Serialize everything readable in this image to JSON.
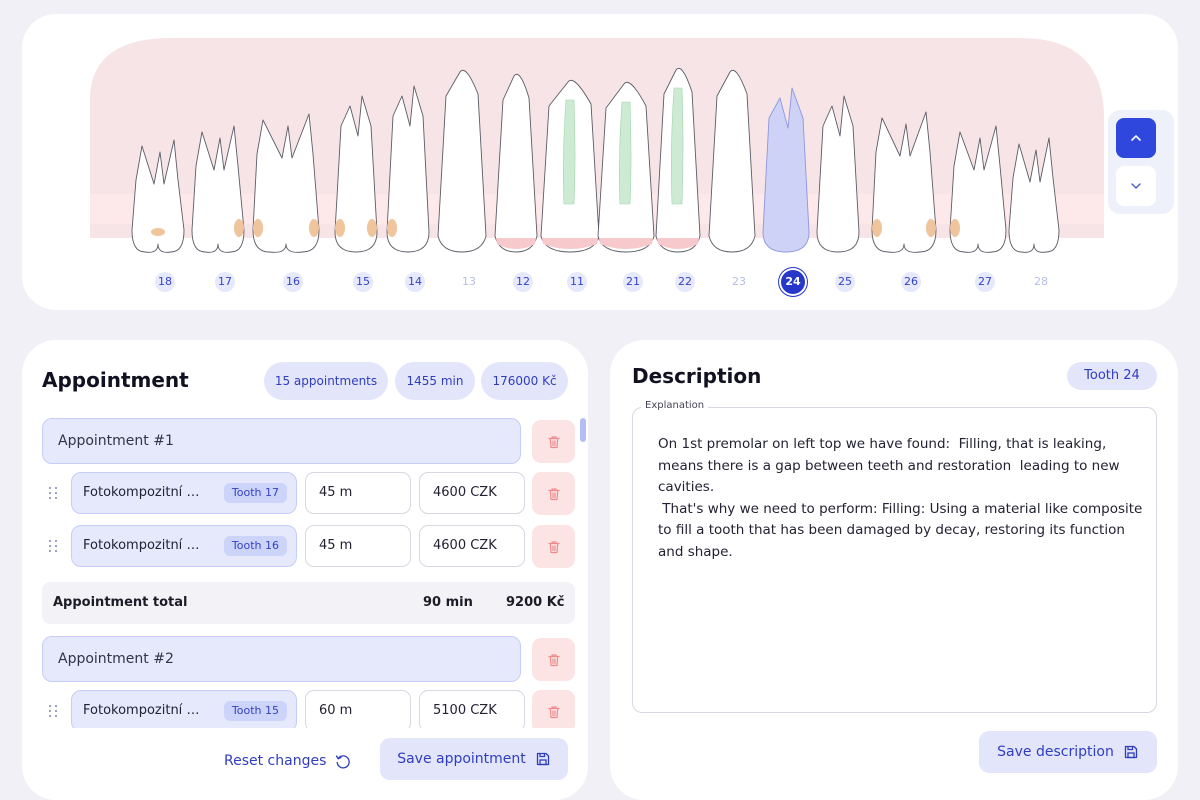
{
  "teeth_chart": {
    "numbers": [
      {
        "label": "18",
        "state": "normal"
      },
      {
        "label": "17",
        "state": "normal"
      },
      {
        "label": "16",
        "state": "normal"
      },
      {
        "label": "15",
        "state": "normal"
      },
      {
        "label": "14",
        "state": "normal"
      },
      {
        "label": "13",
        "state": "faded"
      },
      {
        "label": "12",
        "state": "normal"
      },
      {
        "label": "11",
        "state": "normal"
      },
      {
        "label": "21",
        "state": "normal"
      },
      {
        "label": "22",
        "state": "normal"
      },
      {
        "label": "23",
        "state": "faded"
      },
      {
        "label": "24",
        "state": "selected"
      },
      {
        "label": "25",
        "state": "normal"
      },
      {
        "label": "26",
        "state": "normal"
      },
      {
        "label": "27",
        "state": "normal"
      },
      {
        "label": "28",
        "state": "faded"
      }
    ],
    "jaw_toggle": {
      "up_icon": "chevron-up-icon",
      "down_icon": "chevron-down-icon",
      "active": "up"
    },
    "colors": {
      "gum": "#f7e4e6",
      "filling_orange": "#f0c49c",
      "crown_pink": "#f7c9cc",
      "root_canal_green": "#cdebd3",
      "selected_tooth_blue": "#cdd2f6",
      "accent": "#2637c9"
    }
  },
  "appointment": {
    "title": "Appointment",
    "stats": {
      "count": "15  appointments",
      "minutes": "1455  min",
      "price": "176000  Kč"
    },
    "groups": [
      {
        "label": "Appointment #1",
        "rows": [
          {
            "procedure": "Fotokompozitní výplň",
            "tooth": "Tooth  17",
            "minutes": "45 m",
            "price": "4600 CZK"
          },
          {
            "procedure": "Fotokompozitní výplň",
            "tooth": "Tooth  16",
            "minutes": "45 m",
            "price": "4600 CZK"
          }
        ],
        "total": {
          "label": "Appointment total",
          "minutes": "90 min",
          "price": "9200 Kč"
        }
      },
      {
        "label": "Appointment #2",
        "rows": [
          {
            "procedure": "Fotokompozitní výplň",
            "tooth": "Tooth  15",
            "minutes": "60 m",
            "price": "5100 CZK"
          }
        ]
      }
    ],
    "reset_label": "Reset changes",
    "save_label": "Save appointment",
    "icons": {
      "delete": "trash-icon",
      "drag": "drag-handle-icon",
      "reset": "undo-icon",
      "save": "floppy-disk-icon"
    }
  },
  "description": {
    "title": "Description",
    "tooth_pill": "Tooth  24",
    "field_label": "Explanation",
    "text": "On 1st premolar on left top we have found:  Filling, that is leaking, means there is a gap between teeth and restoration  leading to new cavities.\n That's why we need to perform: Filling: Using a material like composite to fill a tooth that has been damaged by decay, restoring its function and shape.",
    "save_label": "Save description"
  }
}
